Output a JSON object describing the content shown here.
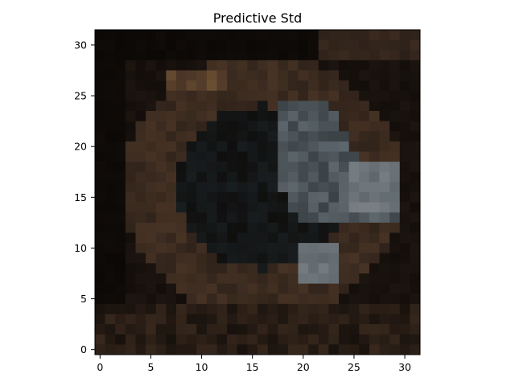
{
  "chart_data": {
    "type": "heatmap",
    "title": "Predictive Std",
    "xlabel": "",
    "ylabel": "",
    "image_size": [
      32,
      32
    ],
    "color_mode": "rgb image (dark, brownish-blue tones)",
    "xlim": [
      -0.5,
      31.5
    ],
    "ylim": [
      31.5,
      -0.5
    ],
    "x_ticks": [
      0,
      5,
      10,
      15,
      20,
      25,
      30
    ],
    "y_ticks": [
      0,
      5,
      10,
      15,
      20,
      25,
      30
    ],
    "x_tick_labels": [
      "0",
      "5",
      "10",
      "15",
      "20",
      "25",
      "30"
    ],
    "y_tick_labels": [
      "0",
      "5",
      "10",
      "15",
      "20",
      "25",
      "30"
    ],
    "grid": false,
    "colors": {
      "background": "#0b0806",
      "dark_brown": "#2a1f18",
      "brown": "#4a3526",
      "highlight_brown": "#6a4e32",
      "slate": "#3a4246",
      "gray_blue": "#5e676d",
      "light_gray": "#8a8f94",
      "teal_dark": "#263238"
    }
  }
}
